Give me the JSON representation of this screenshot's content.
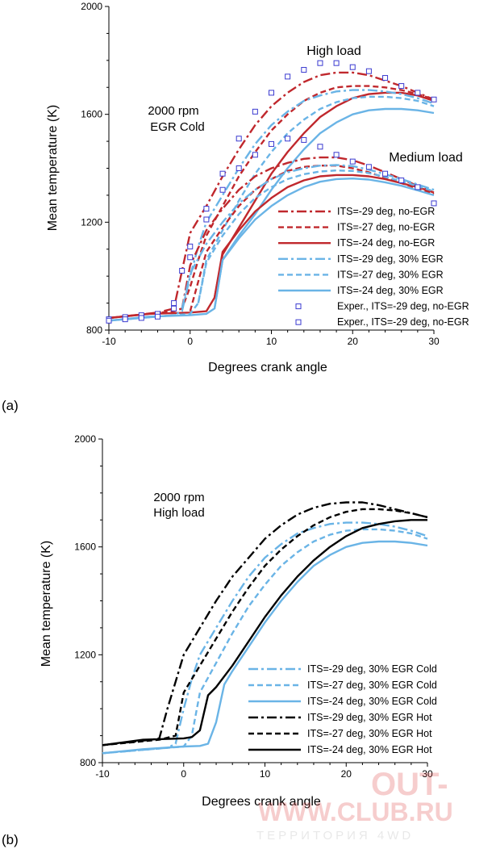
{
  "chart_data": [
    {
      "panel_label": "(a)",
      "type": "line",
      "title": "",
      "annotations": [
        "2000 rpm",
        "EGR Cold",
        "High load",
        "Medium load"
      ],
      "xlabel": "Degrees crank angle",
      "ylabel": "Mean temperature (K)",
      "xlim": [
        -10,
        30
      ],
      "ylim": [
        800,
        2000
      ],
      "xticks": [
        -10,
        0,
        10,
        20,
        30
      ],
      "yticks": [
        800,
        1200,
        1600,
        2000
      ],
      "legend_position": "bottom-right",
      "legend": [
        {
          "label": "ITS=-29 deg, no-EGR",
          "color": "#c0282d",
          "dash": "dashdot",
          "marker": false
        },
        {
          "label": "ITS=-27 deg, no-EGR",
          "color": "#c0282d",
          "dash": "dash",
          "marker": false
        },
        {
          "label": "ITS=-24 deg, no-EGR",
          "color": "#c0282d",
          "dash": "solid",
          "marker": false
        },
        {
          "label": "ITS=-29 deg, 30% EGR",
          "color": "#6ab4e6",
          "dash": "dashdot",
          "marker": false
        },
        {
          "label": "ITS=-27 deg, 30% EGR",
          "color": "#6ab4e6",
          "dash": "dash",
          "marker": false
        },
        {
          "label": "ITS=-24 deg, 30% EGR",
          "color": "#6ab4e6",
          "dash": "solid",
          "marker": false
        },
        {
          "label": "Exper., ITS=-29 deg, no-EGR",
          "color": "#3a3ad0",
          "marker": true
        },
        {
          "label": "Exper., ITS=-29 deg, no-EGR",
          "color": "#3a3ad0",
          "marker": true
        }
      ],
      "series": [
        {
          "color": "#c0282d",
          "dash": "dashdot",
          "load": "high",
          "x": [
            -10,
            -4,
            -2,
            -1,
            0,
            2,
            4,
            6,
            8,
            10,
            12,
            14,
            16,
            18,
            20,
            22,
            24,
            26,
            28,
            30
          ],
          "y": [
            845,
            865,
            880,
            1020,
            1160,
            1260,
            1370,
            1470,
            1560,
            1630,
            1680,
            1720,
            1745,
            1755,
            1755,
            1745,
            1725,
            1705,
            1680,
            1655
          ]
        },
        {
          "color": "#c0282d",
          "dash": "dash",
          "load": "high",
          "x": [
            -10,
            -2,
            -1,
            0,
            1,
            2,
            4,
            6,
            8,
            10,
            12,
            14,
            16,
            18,
            20,
            22,
            24,
            26,
            28,
            30
          ],
          "y": [
            845,
            870,
            880,
            960,
            1060,
            1150,
            1260,
            1370,
            1460,
            1540,
            1600,
            1650,
            1680,
            1700,
            1705,
            1705,
            1700,
            1690,
            1675,
            1655
          ]
        },
        {
          "color": "#c0282d",
          "dash": "solid",
          "load": "high",
          "x": [
            -10,
            -5,
            0,
            2,
            3,
            4,
            6,
            8,
            10,
            12,
            14,
            16,
            18,
            20,
            22,
            24,
            26,
            28,
            30
          ],
          "y": [
            845,
            860,
            865,
            870,
            920,
            1080,
            1180,
            1280,
            1380,
            1460,
            1530,
            1590,
            1630,
            1660,
            1675,
            1680,
            1680,
            1670,
            1650
          ]
        },
        {
          "color": "#6ab4e6",
          "dash": "dashdot",
          "load": "high",
          "x": [
            -10,
            -2,
            -1,
            0,
            1,
            2,
            4,
            6,
            8,
            10,
            12,
            14,
            16,
            18,
            20,
            22,
            24,
            26,
            28,
            30
          ],
          "y": [
            835,
            855,
            870,
            1000,
            1110,
            1200,
            1300,
            1400,
            1490,
            1560,
            1610,
            1650,
            1670,
            1685,
            1690,
            1690,
            1685,
            1675,
            1660,
            1640
          ]
        },
        {
          "color": "#6ab4e6",
          "dash": "dash",
          "load": "high",
          "x": [
            -10,
            0,
            1,
            2,
            4,
            6,
            8,
            10,
            12,
            14,
            16,
            18,
            20,
            22,
            24,
            26,
            28,
            30
          ],
          "y": [
            835,
            860,
            900,
            1060,
            1170,
            1280,
            1380,
            1460,
            1530,
            1580,
            1620,
            1645,
            1660,
            1665,
            1665,
            1660,
            1650,
            1630
          ]
        },
        {
          "color": "#6ab4e6",
          "dash": "solid",
          "load": "high",
          "x": [
            -10,
            -5,
            0,
            2,
            3,
            4,
            6,
            8,
            10,
            12,
            14,
            16,
            18,
            20,
            22,
            24,
            26,
            28,
            30
          ],
          "y": [
            835,
            850,
            855,
            860,
            880,
            1060,
            1150,
            1230,
            1320,
            1400,
            1470,
            1530,
            1570,
            1600,
            1615,
            1620,
            1620,
            1615,
            1605
          ]
        },
        {
          "color": "#c0282d",
          "dash": "dashdot",
          "load": "medium",
          "x": [
            -1,
            0,
            2,
            4,
            6,
            8,
            10,
            12,
            14,
            16,
            18,
            20,
            22,
            24,
            26,
            28,
            30
          ],
          "y": [
            880,
            1040,
            1170,
            1250,
            1320,
            1370,
            1400,
            1420,
            1435,
            1440,
            1440,
            1430,
            1410,
            1385,
            1360,
            1335,
            1310
          ]
        },
        {
          "color": "#c0282d",
          "dash": "dash",
          "load": "medium",
          "x": [
            0,
            1,
            2,
            4,
            6,
            8,
            10,
            12,
            14,
            16,
            18,
            20,
            22,
            24,
            26,
            28,
            30
          ],
          "y": [
            870,
            980,
            1090,
            1180,
            1260,
            1320,
            1360,
            1390,
            1405,
            1410,
            1410,
            1400,
            1385,
            1365,
            1345,
            1325,
            1305
          ]
        },
        {
          "color": "#c0282d",
          "dash": "solid",
          "load": "medium",
          "x": [
            3,
            4,
            6,
            8,
            10,
            12,
            14,
            16,
            18,
            20,
            22,
            24,
            26,
            28,
            30
          ],
          "y": [
            920,
            1090,
            1170,
            1240,
            1290,
            1330,
            1355,
            1370,
            1375,
            1375,
            1370,
            1360,
            1345,
            1330,
            1310
          ]
        },
        {
          "color": "#6ab4e6",
          "dash": "dashdot",
          "load": "medium",
          "x": [
            -1,
            0,
            2,
            4,
            6,
            8,
            10,
            12,
            14,
            16,
            18,
            20,
            22,
            24,
            26,
            28,
            30
          ],
          "y": [
            880,
            1010,
            1120,
            1200,
            1270,
            1320,
            1360,
            1385,
            1400,
            1410,
            1412,
            1408,
            1395,
            1378,
            1360,
            1340,
            1320
          ]
        },
        {
          "color": "#6ab4e6",
          "dash": "dash",
          "load": "medium",
          "x": [
            1,
            2,
            4,
            6,
            8,
            10,
            12,
            14,
            16,
            18,
            20,
            22,
            24,
            26,
            28,
            30
          ],
          "y": [
            900,
            1050,
            1150,
            1230,
            1290,
            1330,
            1360,
            1378,
            1388,
            1392,
            1390,
            1382,
            1368,
            1352,
            1334,
            1315
          ]
        },
        {
          "color": "#6ab4e6",
          "dash": "solid",
          "load": "medium",
          "x": [
            3,
            4,
            6,
            8,
            10,
            12,
            14,
            16,
            18,
            20,
            22,
            24,
            26,
            28,
            30
          ],
          "y": [
            880,
            1060,
            1140,
            1210,
            1260,
            1300,
            1330,
            1350,
            1360,
            1362,
            1358,
            1348,
            1335,
            1318,
            1300
          ]
        }
      ],
      "experimental_points": {
        "x": [
          -10,
          -8,
          -6,
          -4,
          -2,
          -1,
          0,
          2,
          4,
          6,
          8,
          10,
          12,
          14,
          16,
          18,
          20,
          22,
          24,
          26,
          28,
          30,
          -10,
          -8,
          -6,
          -4,
          -2,
          0,
          2,
          4,
          6,
          8,
          10,
          12,
          14,
          16,
          18,
          20,
          22,
          24,
          26,
          28,
          30
        ],
        "y": [
          840,
          848,
          855,
          860,
          900,
          1020,
          1110,
          1250,
          1380,
          1510,
          1610,
          1680,
          1740,
          1765,
          1790,
          1790,
          1775,
          1760,
          1735,
          1705,
          1680,
          1655,
          835,
          840,
          845,
          850,
          880,
          1070,
          1210,
          1320,
          1400,
          1450,
          1490,
          1510,
          1505,
          1480,
          1450,
          1425,
          1405,
          1380,
          1355,
          1330,
          1270
        ]
      }
    },
    {
      "panel_label": "(b)",
      "type": "line",
      "title": "",
      "annotations": [
        "2000 rpm",
        "High load"
      ],
      "xlabel": "Degrees crank angle",
      "ylabel": "Mean temperature (K)",
      "xlim": [
        -10,
        30
      ],
      "ylim": [
        800,
        2000
      ],
      "xticks": [
        -10,
        0,
        10,
        20,
        30
      ],
      "yticks": [
        800,
        1200,
        1600,
        2000
      ],
      "legend_position": "bottom-right",
      "series": [
        {
          "name": "ITS=-29 deg, 30% EGR Cold",
          "color": "#6ab4e6",
          "dash": "dashdot",
          "x": [
            -10,
            -2,
            -1,
            0,
            1,
            2,
            4,
            6,
            8,
            10,
            12,
            14,
            16,
            18,
            20,
            22,
            24,
            26,
            28,
            30
          ],
          "y": [
            835,
            855,
            870,
            1000,
            1110,
            1200,
            1300,
            1400,
            1490,
            1560,
            1610,
            1650,
            1670,
            1685,
            1690,
            1690,
            1685,
            1675,
            1660,
            1640
          ]
        },
        {
          "name": "ITS=-27 deg, 30% EGR Cold",
          "color": "#6ab4e6",
          "dash": "dash",
          "x": [
            -10,
            0,
            1,
            2,
            4,
            6,
            8,
            10,
            12,
            14,
            16,
            18,
            20,
            22,
            24,
            26,
            28,
            30
          ],
          "y": [
            835,
            860,
            900,
            1060,
            1170,
            1280,
            1380,
            1460,
            1530,
            1580,
            1620,
            1645,
            1660,
            1665,
            1665,
            1660,
            1650,
            1630
          ]
        },
        {
          "name": "ITS=-24 deg, 30% EGR Cold",
          "color": "#6ab4e6",
          "dash": "solid",
          "x": [
            -10,
            -5,
            0,
            2,
            3,
            4,
            5,
            6,
            8,
            10,
            12,
            14,
            16,
            18,
            20,
            22,
            24,
            26,
            28,
            30
          ],
          "y": [
            835,
            850,
            860,
            862,
            870,
            950,
            1090,
            1140,
            1230,
            1320,
            1400,
            1470,
            1530,
            1570,
            1600,
            1615,
            1620,
            1620,
            1615,
            1605
          ]
        },
        {
          "name": "ITS=-29 deg, 30% EGR Hot",
          "color": "#000000",
          "dash": "dashdot",
          "x": [
            -10,
            -4,
            -3,
            -2,
            -1,
            0,
            2,
            4,
            6,
            8,
            10,
            12,
            14,
            16,
            18,
            20,
            22,
            24,
            26,
            28,
            30
          ],
          "y": [
            865,
            885,
            890,
            1000,
            1100,
            1200,
            1300,
            1400,
            1490,
            1560,
            1630,
            1680,
            1720,
            1745,
            1760,
            1765,
            1765,
            1755,
            1740,
            1725,
            1710
          ]
        },
        {
          "name": "ITS=-27 deg, 30% EGR Hot",
          "color": "#000000",
          "dash": "dash",
          "x": [
            -10,
            -3,
            -1,
            0,
            2,
            4,
            6,
            8,
            10,
            12,
            14,
            16,
            18,
            20,
            22,
            24,
            26,
            28,
            30
          ],
          "y": [
            865,
            885,
            900,
            1060,
            1160,
            1260,
            1360,
            1450,
            1530,
            1590,
            1640,
            1680,
            1710,
            1730,
            1740,
            1740,
            1735,
            1725,
            1710
          ]
        },
        {
          "name": "ITS=-24 deg, 30% EGR Hot",
          "color": "#000000",
          "dash": "solid",
          "x": [
            -10,
            -5,
            0,
            1,
            2,
            3,
            4,
            6,
            8,
            10,
            12,
            14,
            16,
            18,
            20,
            22,
            24,
            26,
            28,
            30
          ],
          "y": [
            865,
            885,
            890,
            895,
            920,
            1050,
            1080,
            1160,
            1250,
            1340,
            1420,
            1490,
            1550,
            1600,
            1640,
            1670,
            1685,
            1695,
            1700,
            1700
          ]
        }
      ]
    }
  ],
  "watermark": {
    "line1": "OUT-",
    "line2": "WWW.CLUB.RU",
    "line3": "ТЕРРИТОРИЯ 4WD"
  }
}
